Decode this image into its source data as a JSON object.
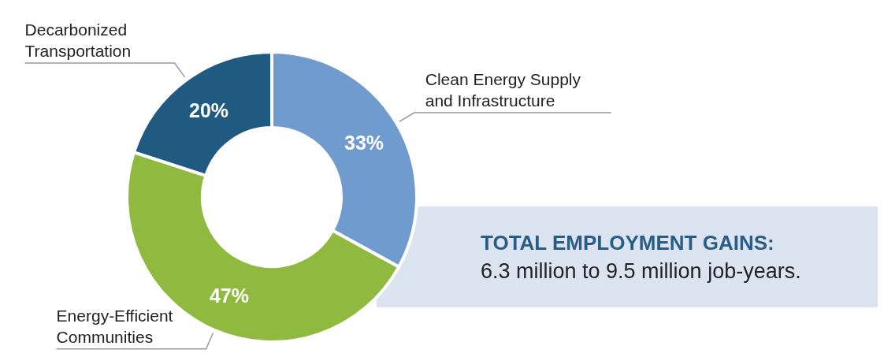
{
  "chart_data": {
    "type": "donut",
    "categories": [
      "Clean Energy Supply and Infrastructure",
      "Energy-Efficient Communities",
      "Decarbonized Transportation"
    ],
    "values": [
      33,
      47,
      20
    ],
    "colors": [
      "#6f9bcf",
      "#8fba3f",
      "#215a80"
    ],
    "value_labels": [
      "33%",
      "47%",
      "20%"
    ],
    "annotations": [
      "TOTAL EMPLOYMENT GAINS:",
      "6.3 million to 9.5 million job-years."
    ]
  }
}
